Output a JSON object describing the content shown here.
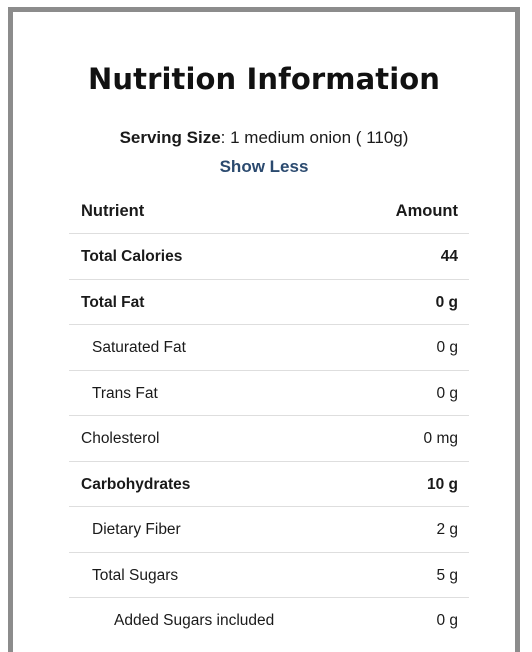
{
  "title": "Nutrition Information",
  "serving": {
    "label": "Serving Size",
    "separator": ":",
    "value": " 1 medium onion ( 110g)"
  },
  "toggle_label": "Show Less",
  "table": {
    "header": {
      "nutrient": "Nutrient",
      "amount": "Amount"
    },
    "rows": [
      {
        "name": "Total Calories",
        "amount": "44",
        "bold": true,
        "indent": 0
      },
      {
        "name": "Total Fat",
        "amount": "0 g",
        "bold": true,
        "indent": 0
      },
      {
        "name": "Saturated Fat",
        "amount": "0 g",
        "bold": false,
        "indent": 1
      },
      {
        "name": "Trans Fat",
        "amount": "0 g",
        "bold": false,
        "indent": 1
      },
      {
        "name": "Cholesterol",
        "amount": "0 mg",
        "bold": false,
        "indent": 0
      },
      {
        "name": "Carbohydrates",
        "amount": "10 g",
        "bold": true,
        "indent": 0
      },
      {
        "name": "Dietary Fiber",
        "amount": "2 g",
        "bold": false,
        "indent": 1
      },
      {
        "name": "Total Sugars",
        "amount": "5 g",
        "bold": false,
        "indent": 1
      },
      {
        "name": "Added Sugars included",
        "amount": "0 g",
        "bold": false,
        "indent": 2
      }
    ]
  },
  "colors": {
    "frame_border": "#8c8c8c",
    "link": "#2b4a6f",
    "divider": "#dedede"
  }
}
